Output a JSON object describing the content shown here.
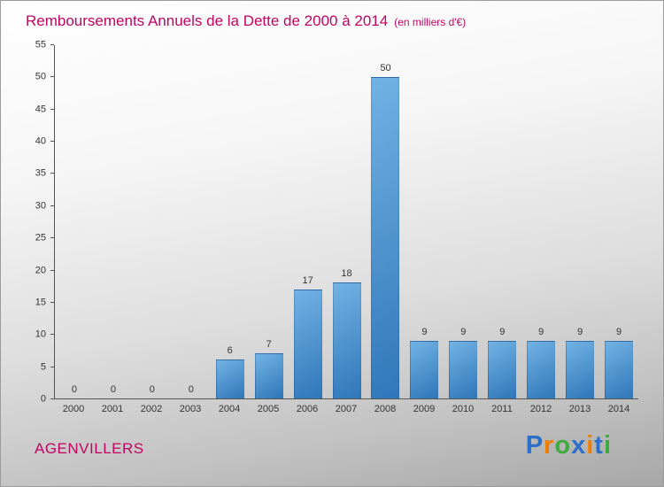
{
  "header": {
    "title": "Remboursements Annuels de la Dette de 2000 à 2014",
    "subtitle": "(en milliers d'€)"
  },
  "footer": {
    "commune": "AGENVILLERS",
    "logo_text": "Proxiti",
    "logo_letters": [
      {
        "char": "P",
        "color": "#2b6fc8"
      },
      {
        "char": "r",
        "color": "#f07d00"
      },
      {
        "char": "o",
        "color": "#3faa3f"
      },
      {
        "char": "x",
        "color": "#2b6fc8"
      },
      {
        "char": "i",
        "color": "#f07d00"
      },
      {
        "char": "t",
        "color": "#2b6fc8"
      },
      {
        "char": "i",
        "color": "#3faa3f"
      }
    ]
  },
  "colors": {
    "title": "#c00462",
    "bar_light": "#72b2e4",
    "bar_dark": "#2f77ba",
    "axis": "#555555",
    "label": "#333333"
  },
  "chart_data": {
    "type": "bar",
    "title": "Remboursements Annuels de la Dette de 2000 à 2014",
    "subtitle": "(en milliers d'€)",
    "categories": [
      "2000",
      "2001",
      "2002",
      "2003",
      "2004",
      "2005",
      "2006",
      "2007",
      "2008",
      "2009",
      "2010",
      "2011",
      "2012",
      "2013",
      "2014"
    ],
    "values": [
      0,
      0,
      0,
      0,
      6,
      7,
      17,
      18,
      50,
      9,
      9,
      9,
      9,
      9,
      9
    ],
    "xlabel": "",
    "ylabel": "",
    "ylim": [
      0,
      55
    ],
    "y_tick_step": 5,
    "grid": false,
    "legend": false,
    "data_labels": true
  }
}
